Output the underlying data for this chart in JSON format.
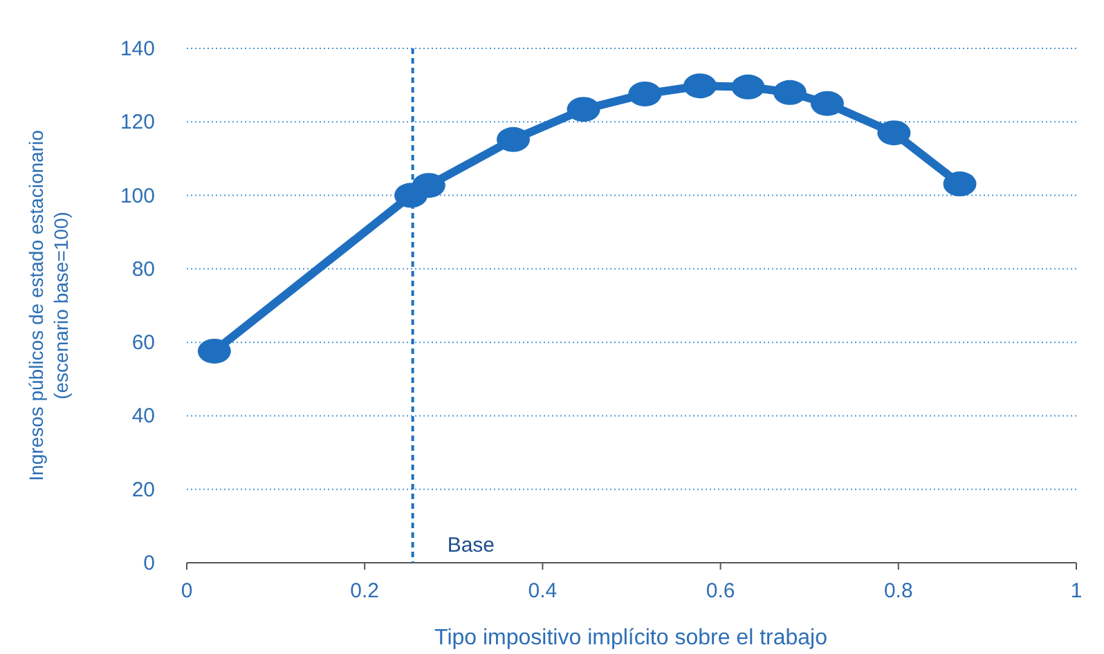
{
  "chart_data": {
    "type": "line",
    "xlabel": "Tipo impositivo implícito sobre el trabajo",
    "ylabel": "Ingresos públicos de estado estacionario\n(escenario base=100)",
    "x": [
      0.031,
      0.252,
      0.272,
      0.367,
      0.446,
      0.515,
      0.577,
      0.631,
      0.678,
      0.72,
      0.795,
      0.869
    ],
    "series": [
      {
        "color": "#1f6fc0",
        "values": [
          57.6,
          100,
          102.7,
          115.2,
          123.4,
          127.6,
          129.8,
          129.5,
          128,
          125,
          117,
          103.1
        ]
      }
    ],
    "xlim": [
      0,
      1
    ],
    "xticks": [
      0,
      0.2,
      0.4,
      0.6,
      0.8,
      1
    ],
    "ylim": [
      0,
      140
    ],
    "yticks": [
      0,
      20,
      40,
      60,
      80,
      100,
      120,
      140
    ],
    "grid": "y",
    "marker": "circle",
    "line_style": "solid",
    "ref_lines": [
      {
        "axis": "x",
        "value": 0.254,
        "label": "Base",
        "color": "#1f6fc0",
        "line_style": "dashed"
      }
    ]
  }
}
